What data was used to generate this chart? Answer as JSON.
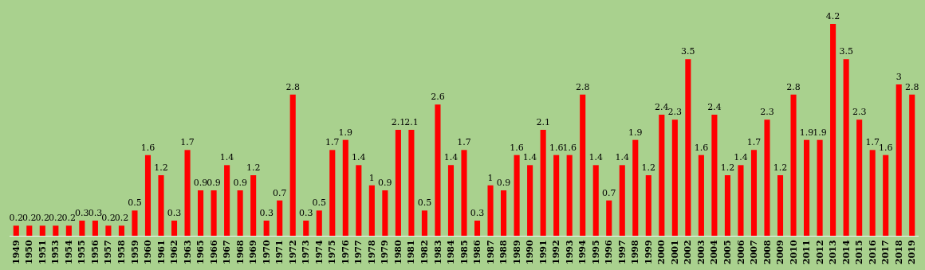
{
  "chart_data": {
    "type": "bar",
    "categories": [
      "1949",
      "1950",
      "1951",
      "1953",
      "1954",
      "1955",
      "1956",
      "1957",
      "1958",
      "1959",
      "1960",
      "1961",
      "1962",
      "1963",
      "1965",
      "1966",
      "1967",
      "1968",
      "1969",
      "1970",
      "1971",
      "1972",
      "1973",
      "1974",
      "1975",
      "1976",
      "1977",
      "1978",
      "1979",
      "1980",
      "1981",
      "1982",
      "1983",
      "1984",
      "1985",
      "1986",
      "1987",
      "1988",
      "1989",
      "1990",
      "1991",
      "1992",
      "1993",
      "1994",
      "1995",
      "1996",
      "1997",
      "1998",
      "1999",
      "2000",
      "2001",
      "2002",
      "2003",
      "2004",
      "2005",
      "2006",
      "2007",
      "2008",
      "2009",
      "2010",
      "2011",
      "2012",
      "2013",
      "2014",
      "2015",
      "2016",
      "2017",
      "2018",
      "2019"
    ],
    "values": [
      0.2,
      0.2,
      0.2,
      0.2,
      0.2,
      0.3,
      0.3,
      0.2,
      0.2,
      0.5,
      1.6,
      1.2,
      0.3,
      1.7,
      0.9,
      0.9,
      1.4,
      0.9,
      1.2,
      0.3,
      0.7,
      2.8,
      0.3,
      0.5,
      1.7,
      1.9,
      1.4,
      1,
      0.9,
      2.1,
      2.1,
      0.5,
      2.6,
      1.4,
      1.7,
      0.3,
      1,
      0.9,
      1.6,
      1.4,
      2.1,
      1.6,
      1.6,
      2.8,
      1.4,
      0.7,
      1.4,
      1.9,
      1.2,
      2.4,
      2.3,
      3.5,
      1.6,
      2.4,
      1.2,
      1.4,
      1.7,
      2.3,
      1.2,
      2.8,
      1.9,
      1.9,
      4.2,
      3.5,
      2.3,
      1.7,
      1.6,
      3,
      2.8
    ],
    "color": "#ff0000",
    "ylim": [
      0,
      4.2
    ],
    "tick_labels": "x",
    "data_labels": true
  }
}
